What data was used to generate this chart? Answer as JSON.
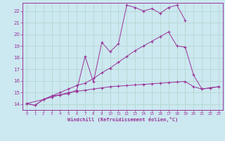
{
  "background_color": "#cce8f0",
  "grid_color": "#b0d4cc",
  "line_color": "#993399",
  "xlabel": "Windchill (Refroidissement éolien,°C)",
  "xlim": [
    -0.5,
    23.5
  ],
  "ylim": [
    13.5,
    22.7
  ],
  "yticks": [
    14,
    15,
    16,
    17,
    18,
    19,
    20,
    21,
    22
  ],
  "xticks": [
    0,
    1,
    2,
    3,
    4,
    5,
    6,
    7,
    8,
    9,
    10,
    11,
    12,
    13,
    14,
    15,
    16,
    17,
    18,
    19,
    20,
    21,
    22,
    23
  ],
  "series": [
    {
      "x": [
        0,
        1,
        2,
        3,
        4,
        5,
        6,
        7,
        8,
        9,
        10,
        11,
        12,
        13,
        14,
        15,
        16,
        17,
        18,
        19
      ],
      "y": [
        14.05,
        13.9,
        14.4,
        14.7,
        14.8,
        14.9,
        15.2,
        18.1,
        15.9,
        19.3,
        18.5,
        19.2,
        22.5,
        22.3,
        22.0,
        22.2,
        21.8,
        22.3,
        22.5,
        21.2
      ]
    },
    {
      "x": [
        0,
        1,
        2,
        3,
        4,
        5,
        6,
        7,
        8,
        9,
        10,
        11,
        12,
        13,
        14,
        15,
        16,
        17,
        18,
        19,
        20,
        21,
        22,
        23
      ],
      "y": [
        14.05,
        13.9,
        14.4,
        14.7,
        15.0,
        15.3,
        15.6,
        15.8,
        16.2,
        16.7,
        17.1,
        17.6,
        18.1,
        18.6,
        19.0,
        19.4,
        19.8,
        20.2,
        19.0,
        18.9,
        16.5,
        15.3,
        15.4,
        15.5
      ]
    },
    {
      "x": [
        0,
        2,
        3,
        4,
        5,
        6,
        7,
        8,
        9,
        10,
        11,
        12,
        13,
        14,
        15,
        16,
        17,
        18,
        19,
        20,
        21,
        22,
        23
      ],
      "y": [
        14.05,
        14.4,
        14.6,
        14.8,
        15.0,
        15.1,
        15.2,
        15.3,
        15.4,
        15.5,
        15.55,
        15.6,
        15.65,
        15.7,
        15.75,
        15.8,
        15.85,
        15.9,
        15.95,
        15.5,
        15.3,
        15.4,
        15.5
      ]
    }
  ]
}
